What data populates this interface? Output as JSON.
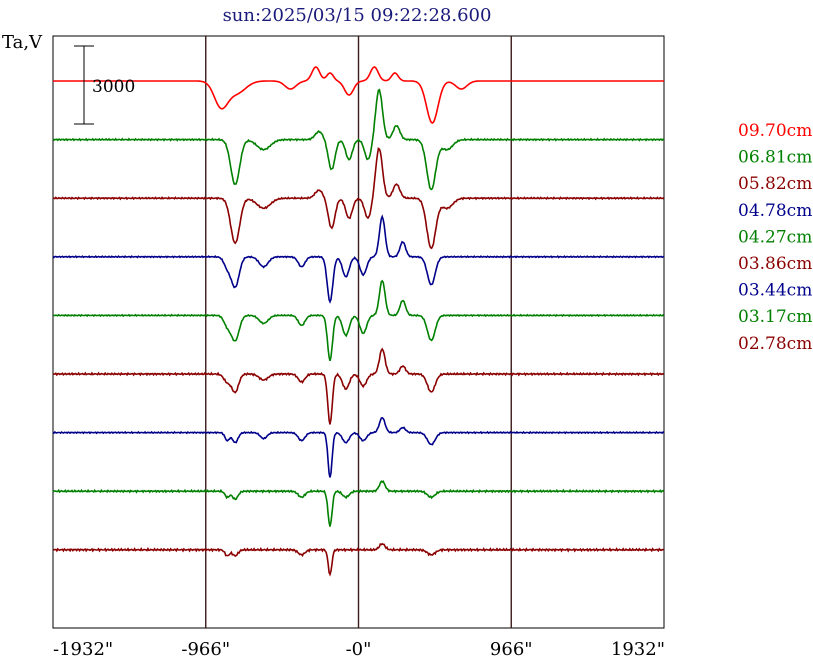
{
  "chart_data": {
    "type": "line",
    "title": "sun:2025/03/15 09:22:28.600",
    "ylabel": "Ta,V",
    "xlabel": "",
    "xlim": [
      -1932,
      1932
    ],
    "x_ticks": [
      {
        "value": -1932,
        "label": "-1932\""
      },
      {
        "value": -966,
        "label": "-966\""
      },
      {
        "value": 0,
        "label": "-0\""
      },
      {
        "value": 966,
        "label": "966\""
      },
      {
        "value": 1932,
        "label": "1932\""
      }
    ],
    "vertical_lines": [
      -966,
      0,
      966
    ],
    "scale_bar": {
      "label": "3000",
      "value": 3000
    },
    "series": [
      {
        "name": "09.70cm",
        "color": "#ff0000",
        "baseline": 0,
        "noise": 0.0,
        "features": [
          [
            -870,
            -25,
            60
          ],
          [
            -770,
            -12,
            80
          ],
          [
            -430,
            -8,
            50
          ],
          [
            -270,
            14,
            35
          ],
          [
            -180,
            8,
            30
          ],
          [
            -60,
            -14,
            40
          ],
          [
            100,
            14,
            35
          ],
          [
            230,
            8,
            30
          ],
          [
            450,
            -8,
            50
          ],
          [
            470,
            -35,
            50
          ],
          [
            650,
            -8,
            50
          ]
        ]
      },
      {
        "name": "06.81cm",
        "color": "#008000",
        "baseline": 1,
        "noise": 0.5,
        "features": [
          [
            -780,
            -45,
            40
          ],
          [
            -600,
            -10,
            60
          ],
          [
            -250,
            8,
            35
          ],
          [
            -170,
            -30,
            30
          ],
          [
            -60,
            -20,
            30
          ],
          [
            60,
            -20,
            30
          ],
          [
            130,
            50,
            30
          ],
          [
            240,
            14,
            30
          ],
          [
            460,
            -50,
            40
          ],
          [
            560,
            -10,
            50
          ]
        ]
      },
      {
        "name": "05.82cm",
        "color": "#8b0000",
        "baseline": 2,
        "noise": 0.5,
        "features": [
          [
            -780,
            -45,
            40
          ],
          [
            -600,
            -10,
            60
          ],
          [
            -250,
            8,
            35
          ],
          [
            -170,
            -30,
            30
          ],
          [
            -60,
            -20,
            30
          ],
          [
            60,
            -20,
            30
          ],
          [
            130,
            50,
            30
          ],
          [
            240,
            14,
            30
          ],
          [
            460,
            -50,
            40
          ],
          [
            560,
            -10,
            50
          ]
        ]
      },
      {
        "name": "04.78cm",
        "color": "#00008b",
        "baseline": 3,
        "noise": 0.4,
        "features": [
          [
            -780,
            -30,
            35
          ],
          [
            -830,
            -10,
            30
          ],
          [
            -600,
            -10,
            40
          ],
          [
            -360,
            -10,
            30
          ],
          [
            -180,
            -45,
            25
          ],
          [
            -80,
            -20,
            30
          ],
          [
            30,
            -18,
            30
          ],
          [
            150,
            40,
            25
          ],
          [
            280,
            15,
            25
          ],
          [
            460,
            -28,
            35
          ]
        ]
      },
      {
        "name": "04.27cm",
        "color": "#008000",
        "baseline": 4,
        "noise": 0.4,
        "features": [
          [
            -780,
            -25,
            35
          ],
          [
            -830,
            -10,
            30
          ],
          [
            -600,
            -8,
            40
          ],
          [
            -360,
            -10,
            30
          ],
          [
            -180,
            -45,
            22
          ],
          [
            -80,
            -20,
            30
          ],
          [
            30,
            -18,
            30
          ],
          [
            150,
            35,
            25
          ],
          [
            280,
            15,
            25
          ],
          [
            460,
            -25,
            35
          ]
        ]
      },
      {
        "name": "03.86cm",
        "color": "#8b0000",
        "baseline": 5,
        "noise": 0.6,
        "features": [
          [
            -780,
            -18,
            30
          ],
          [
            -830,
            -8,
            30
          ],
          [
            -600,
            -6,
            40
          ],
          [
            -360,
            -8,
            30
          ],
          [
            -180,
            -50,
            20
          ],
          [
            -80,
            -15,
            30
          ],
          [
            30,
            -12,
            30
          ],
          [
            150,
            25,
            25
          ],
          [
            280,
            8,
            25
          ],
          [
            460,
            -18,
            35
          ]
        ]
      },
      {
        "name": "03.44cm",
        "color": "#00008b",
        "baseline": 6,
        "noise": 0.4,
        "features": [
          [
            -830,
            -8,
            20
          ],
          [
            -780,
            -10,
            25
          ],
          [
            -600,
            -6,
            30
          ],
          [
            -360,
            -8,
            30
          ],
          [
            -180,
            -45,
            18
          ],
          [
            -80,
            -10,
            30
          ],
          [
            30,
            -8,
            30
          ],
          [
            150,
            15,
            25
          ],
          [
            280,
            5,
            25
          ],
          [
            460,
            -12,
            35
          ]
        ]
      },
      {
        "name": "03.17cm",
        "color": "#008000",
        "baseline": 7,
        "noise": 0.6,
        "features": [
          [
            -830,
            -6,
            20
          ],
          [
            -780,
            -8,
            25
          ],
          [
            -360,
            -6,
            30
          ],
          [
            -180,
            -35,
            18
          ],
          [
            -80,
            -6,
            30
          ],
          [
            150,
            10,
            25
          ],
          [
            460,
            -6,
            35
          ]
        ]
      },
      {
        "name": "02.78cm",
        "color": "#8b0000",
        "baseline": 8,
        "noise": 0.7,
        "features": [
          [
            -830,
            -6,
            20
          ],
          [
            -780,
            -6,
            25
          ],
          [
            -360,
            -5,
            30
          ],
          [
            -180,
            -25,
            16
          ],
          [
            150,
            6,
            25
          ],
          [
            460,
            -5,
            35
          ]
        ]
      }
    ]
  }
}
